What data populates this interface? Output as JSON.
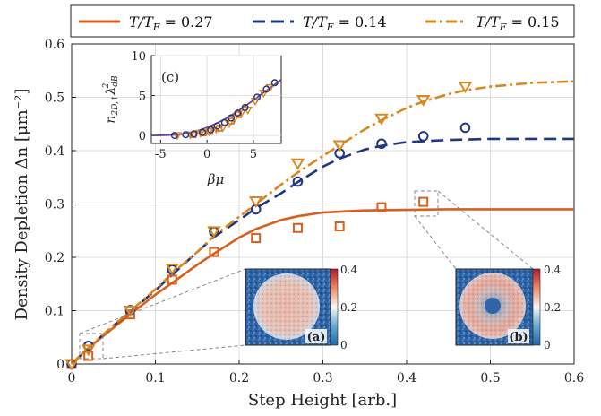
{
  "chart_data": {
    "type": "line",
    "xlabel": "Step Height [arb.]",
    "ylabel": "Density Depletion Δn [μm⁻²]",
    "xlim": [
      0,
      0.6
    ],
    "ylim": [
      0,
      0.6
    ],
    "xticks": [
      "0",
      "0.1",
      "0.2",
      "0.3",
      "0.4",
      "0.5",
      "0.6"
    ],
    "yticks": [
      "0",
      "0.1",
      "0.2",
      "0.3",
      "0.4",
      "0.5",
      "0.6"
    ],
    "grid": true,
    "legend_position": "top",
    "colors": {
      "orange": "#d95f1c",
      "navy": "#1f3680",
      "gold": "#d9871e"
    },
    "series": [
      {
        "name": "T/T_F = 0.27",
        "legend_parts": [
          "T/T",
          "F",
          " = 0.27"
        ],
        "line_style": "solid",
        "color": "#d95f1c",
        "marker": "square",
        "fit_curve": {
          "x": [
            0,
            0.02,
            0.05,
            0.07,
            0.1,
            0.12,
            0.15,
            0.17,
            0.2,
            0.22,
            0.25,
            0.27,
            0.3,
            0.35,
            0.4,
            0.45,
            0.5,
            0.6
          ],
          "y": [
            0,
            0.03,
            0.068,
            0.093,
            0.13,
            0.152,
            0.186,
            0.207,
            0.237,
            0.253,
            0.27,
            0.277,
            0.284,
            0.288,
            0.289,
            0.29,
            0.29,
            0.29
          ]
        },
        "points": {
          "x": [
            0,
            0.02,
            0.07,
            0.12,
            0.17,
            0.22,
            0.27,
            0.32,
            0.37,
            0.42
          ],
          "y": [
            0,
            0.015,
            0.093,
            0.158,
            0.21,
            0.236,
            0.255,
            0.258,
            0.294,
            0.304
          ]
        }
      },
      {
        "name": "T/T_F = 0.14",
        "legend_parts": [
          "T/T",
          "F",
          " = 0.14"
        ],
        "line_style": "dashed",
        "color": "#1f3680",
        "marker": "circle",
        "fit_curve": {
          "x": [
            0,
            0.02,
            0.05,
            0.07,
            0.1,
            0.12,
            0.15,
            0.17,
            0.2,
            0.22,
            0.25,
            0.27,
            0.3,
            0.32,
            0.35,
            0.37,
            0.4,
            0.45,
            0.5,
            0.6
          ],
          "y": [
            0,
            0.03,
            0.072,
            0.098,
            0.138,
            0.167,
            0.21,
            0.238,
            0.27,
            0.292,
            0.32,
            0.341,
            0.37,
            0.385,
            0.402,
            0.409,
            0.416,
            0.42,
            0.422,
            0.422
          ]
        },
        "points": {
          "x": [
            0,
            0.02,
            0.07,
            0.12,
            0.17,
            0.22,
            0.27,
            0.32,
            0.37,
            0.42,
            0.47
          ],
          "y": [
            0,
            0.034,
            0.101,
            0.177,
            0.248,
            0.29,
            0.342,
            0.395,
            0.413,
            0.427,
            0.443
          ]
        }
      },
      {
        "name": "T/T_F = 0.15",
        "legend_parts": [
          "T/T",
          "F",
          " = 0.15"
        ],
        "line_style": "dashdot",
        "color": "#d9871e",
        "marker": "triangle-down",
        "fit_curve": {
          "x": [
            0,
            0.02,
            0.05,
            0.07,
            0.1,
            0.12,
            0.15,
            0.17,
            0.2,
            0.22,
            0.25,
            0.27,
            0.3,
            0.32,
            0.35,
            0.37,
            0.4,
            0.42,
            0.45,
            0.47,
            0.5,
            0.55,
            0.6
          ],
          "y": [
            0,
            0.03,
            0.073,
            0.099,
            0.14,
            0.17,
            0.21,
            0.24,
            0.276,
            0.3,
            0.336,
            0.359,
            0.39,
            0.41,
            0.44,
            0.457,
            0.48,
            0.492,
            0.506,
            0.513,
            0.52,
            0.527,
            0.53
          ]
        },
        "points": {
          "x": [
            0,
            0.02,
            0.07,
            0.12,
            0.17,
            0.22,
            0.27,
            0.32,
            0.37,
            0.42,
            0.47
          ],
          "y": [
            0,
            0.027,
            0.1,
            0.179,
            0.249,
            0.305,
            0.376,
            0.41,
            0.46,
            0.495,
            0.52
          ]
        }
      }
    ],
    "inset_c": {
      "panel_label": "(c)",
      "xlabel": "βμ",
      "ylabel_parts": [
        "n",
        "2D,↑",
        "λ",
        "dB",
        "2"
      ],
      "xlim": [
        -6,
        8
      ],
      "ylim": [
        -1,
        10
      ],
      "xticks": [
        "-5",
        "0",
        "5"
      ],
      "yticks": [
        "0",
        "5",
        "10"
      ],
      "curve": {
        "x": [
          -6,
          -5,
          -4,
          -3,
          -2,
          -1,
          0,
          1,
          2,
          3,
          4,
          5,
          6,
          7,
          8
        ],
        "y": [
          0.0,
          0.02,
          0.05,
          0.12,
          0.3,
          0.6,
          1.0,
          1.5,
          2.1,
          2.8,
          3.6,
          4.4,
          5.3,
          6.1,
          7.0
        ]
      },
      "circles": {
        "x": [
          -3.5,
          -2.3,
          -1.4,
          -0.5,
          0.4,
          1.1,
          1.9,
          2.6,
          3.3,
          4.1,
          5.4,
          6.4,
          7.3
        ],
        "y": [
          0.0,
          0.1,
          0.2,
          0.4,
          0.7,
          1.2,
          1.6,
          2.2,
          2.8,
          3.5,
          4.8,
          5.8,
          6.6
        ]
      },
      "triangles": {
        "x": [
          -3.2,
          -1.8,
          -0.7,
          0.2,
          1.0,
          1.7,
          2.4,
          3.0,
          3.7,
          4.4,
          5.2,
          6.1,
          6.8
        ],
        "y": [
          0.0,
          0.1,
          0.3,
          0.5,
          0.8,
          1.0,
          1.5,
          2.2,
          2.8,
          3.2,
          4.3,
          5.3,
          6.0
        ]
      },
      "squares": {
        "x": [
          -1.5,
          -0.4,
          0.3,
          1.3,
          2.6,
          3.4
        ],
        "y": [
          0.1,
          0.3,
          0.5,
          0.9,
          1.8,
          2.6
        ]
      }
    },
    "insets_images": [
      {
        "panel_label": "(a)",
        "colorbar_ticks": [
          "0.4",
          "0.2",
          "0"
        ],
        "appearance": "disk"
      },
      {
        "panel_label": "(b)",
        "colorbar_ticks": [
          "0.4",
          "0.2",
          "0"
        ],
        "appearance": "ring"
      }
    ]
  }
}
